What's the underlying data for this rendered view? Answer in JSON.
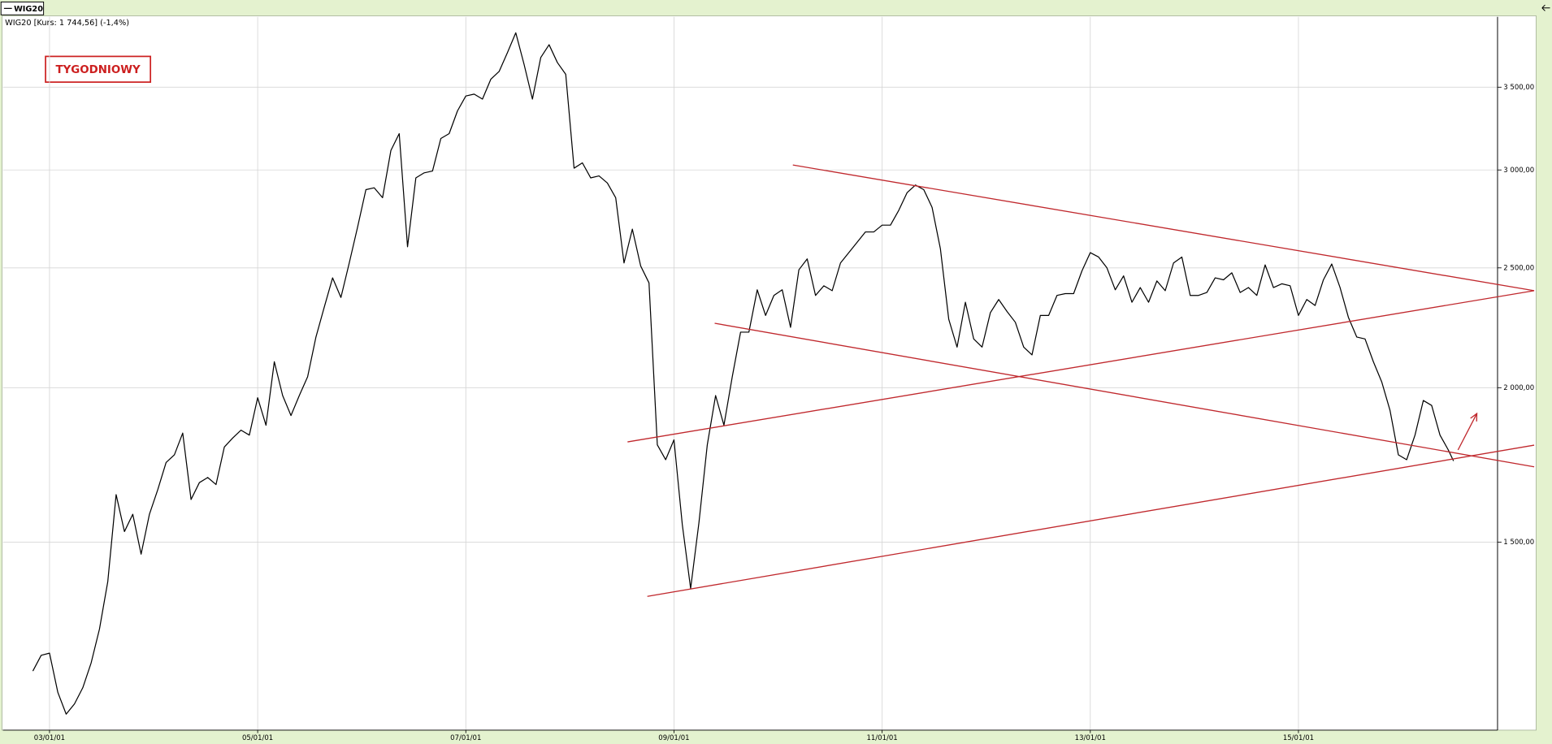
{
  "chart_data": {
    "type": "line",
    "legend_text": "WIG20 [Kurs: 1 744,56] (-1,4%)",
    "annotation": "TYGODNIOWY",
    "log_scale": true,
    "grid": true,
    "x": [
      2002.84,
      2002.92,
      2003,
      2003.08,
      2003.16,
      2003.24,
      2003.32,
      2003.4,
      2003.48,
      2003.56,
      2003.64,
      2003.72,
      2003.8,
      2003.88,
      2003.96,
      2004.04,
      2004.12,
      2004.2,
      2004.28,
      2004.36,
      2004.44,
      2004.52,
      2004.6,
      2004.68,
      2004.76,
      2004.84,
      2004.92,
      2005,
      2005.08,
      2005.16,
      2005.24,
      2005.32,
      2005.4,
      2005.48,
      2005.56,
      2005.64,
      2005.72,
      2005.8,
      2005.88,
      2005.96,
      2006.04,
      2006.12,
      2006.2,
      2006.28,
      2006.36,
      2006.44,
      2006.52,
      2006.6,
      2006.68,
      2006.76,
      2006.84,
      2006.92,
      2007,
      2007.08,
      2007.16,
      2007.24,
      2007.32,
      2007.4,
      2007.48,
      2007.56,
      2007.64,
      2007.72,
      2007.8,
      2007.88,
      2007.96,
      2008.04,
      2008.12,
      2008.2,
      2008.28,
      2008.36,
      2008.44,
      2008.52,
      2008.6,
      2008.68,
      2008.76,
      2008.84,
      2008.92,
      2009,
      2009.08,
      2009.16,
      2009.24,
      2009.32,
      2009.4,
      2009.48,
      2009.56,
      2009.64,
      2009.72,
      2009.8,
      2009.88,
      2009.96,
      2010.04,
      2010.12,
      2010.2,
      2010.28,
      2010.36,
      2010.44,
      2010.52,
      2010.6,
      2010.68,
      2010.76,
      2010.84,
      2010.92,
      2011,
      2011.08,
      2011.16,
      2011.24,
      2011.32,
      2011.4,
      2011.48,
      2011.56,
      2011.64,
      2011.72,
      2011.8,
      2011.88,
      2011.96,
      2012.04,
      2012.12,
      2012.2,
      2012.28,
      2012.36,
      2012.44,
      2012.52,
      2012.6,
      2012.68,
      2012.76,
      2012.84,
      2012.92,
      2013,
      2013.08,
      2013.16,
      2013.24,
      2013.32,
      2013.4,
      2013.48,
      2013.56,
      2013.64,
      2013.72,
      2013.8,
      2013.88,
      2013.96,
      2014.04,
      2014.12,
      2014.2,
      2014.28,
      2014.36,
      2014.44,
      2014.52,
      2014.6,
      2014.68,
      2014.76,
      2014.84,
      2014.92,
      2015,
      2015.08,
      2015.16,
      2015.24,
      2015.32,
      2015.4,
      2015.48,
      2015.56,
      2015.64,
      2015.72,
      2015.8,
      2015.88,
      2015.96,
      2016.04,
      2016.12,
      2016.2,
      2016.28,
      2016.36,
      2016.44,
      2016.49
    ],
    "series": [
      {
        "name": "WIG20",
        "color": "#000000",
        "values": [
          1180,
          1215,
          1220,
          1134,
          1089,
          1110,
          1144,
          1198,
          1276,
          1394,
          1639,
          1530,
          1580,
          1467,
          1580,
          1654,
          1740,
          1765,
          1838,
          1624,
          1676,
          1692,
          1670,
          1791,
          1821,
          1848,
          1831,
          1963,
          1865,
          2099,
          1971,
          1899,
          1971,
          2041,
          2198,
          2324,
          2454,
          2366,
          2523,
          2697,
          2892,
          2902,
          2849,
          3111,
          3210,
          2600,
          2956,
          2984,
          2994,
          3181,
          3210,
          3349,
          3443,
          3455,
          3423,
          3552,
          3604,
          3733,
          3873,
          3651,
          3423,
          3699,
          3788,
          3664,
          3585,
          3010,
          3040,
          2956,
          2967,
          2928,
          2849,
          2523,
          2687,
          2509,
          2431,
          1798,
          1749,
          1815,
          1550,
          1376,
          1556,
          1798,
          1971,
          1865,
          2041,
          2218,
          2218,
          2400,
          2288,
          2375,
          2400,
          2238,
          2491,
          2542,
          2375,
          2418,
          2396,
          2523,
          2572,
          2622,
          2673,
          2673,
          2707,
          2707,
          2783,
          2876,
          2917,
          2892,
          2798,
          2590,
          2272,
          2157,
          2345,
          2190,
          2157,
          2300,
          2357,
          2305,
          2259,
          2157,
          2126,
          2288,
          2288,
          2375,
          2383,
          2383,
          2486,
          2572,
          2551,
          2500,
          2400,
          2463,
          2345,
          2410,
          2345,
          2440,
          2396,
          2523,
          2551,
          2375,
          2375,
          2388,
          2454,
          2445,
          2477,
          2388,
          2410,
          2375,
          2514,
          2410,
          2427,
          2418,
          2288,
          2357,
          2331,
          2445,
          2518,
          2410,
          2280,
          2198,
          2190,
          2099,
          2022,
          1917,
          1765,
          1749,
          1831,
          1953,
          1935,
          1831,
          1781,
          1745
        ]
      }
    ],
    "trendlines": [
      {
        "color": "#c0282d",
        "x": [
          2010.142,
          2017.265
        ],
        "y": [
          3028,
          2396
        ]
      },
      {
        "color": "#c0282d",
        "x": [
          2008.554,
          2017.265
        ],
        "y": [
          1808,
          2396
        ]
      },
      {
        "color": "#c0282d",
        "x": [
          2009.391,
          2017.265
        ],
        "y": [
          2255,
          1726
        ]
      },
      {
        "color": "#c0282d",
        "x": [
          2008.744,
          2017.265
        ],
        "y": [
          1356,
          1797
        ]
      }
    ],
    "arrow": {
      "color": "#c0282d",
      "x": [
        2016.533,
        2016.714
      ],
      "y": [
        1781,
        1906
      ]
    },
    "xlim": [
      2002.553,
      2016.913
    ],
    "ylim": [
      1057,
      3990
    ],
    "xticks": [
      {
        "value": 2003,
        "label": "03/01/01"
      },
      {
        "value": 2005,
        "label": "05/01/01"
      },
      {
        "value": 2007,
        "label": "07/01/01"
      },
      {
        "value": 2009,
        "label": "09/01/01"
      },
      {
        "value": 2011,
        "label": "11/01/01"
      },
      {
        "value": 2013,
        "label": "13/01/01"
      },
      {
        "value": 2015,
        "label": "15/01/01"
      }
    ],
    "yticks": [
      {
        "value": 1500,
        "label": "1 500,00"
      },
      {
        "value": 2000,
        "label": "2 000,00"
      },
      {
        "value": 2500,
        "label": "2 500,00"
      },
      {
        "value": 3000,
        "label": "3 000,00"
      },
      {
        "value": 3500,
        "label": "3 500,00"
      }
    ]
  }
}
